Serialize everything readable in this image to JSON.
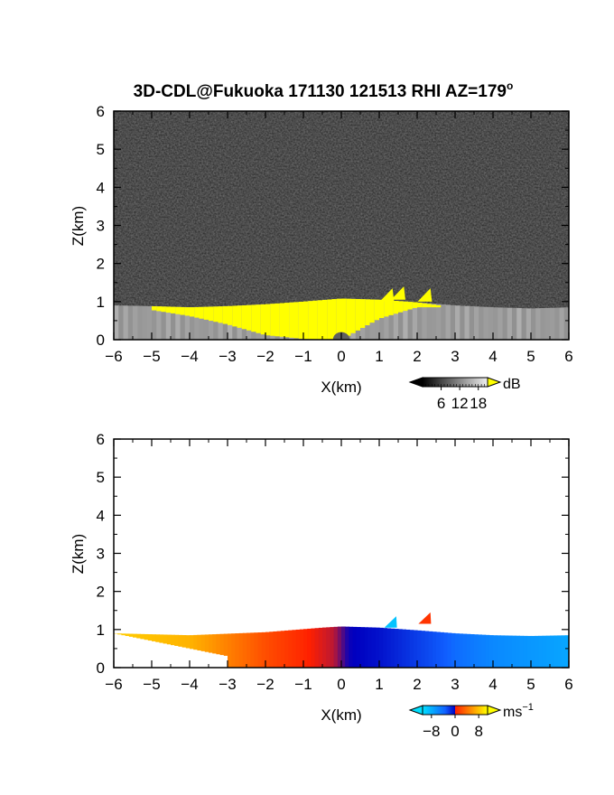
{
  "chart_data": [
    {
      "type": "heatmap",
      "panel": "backscatter",
      "title": "3D-CDL@Fukuoka 171130 121513 RHI AZ=179",
      "title_superscript": "o",
      "xlabel": "X(km)",
      "ylabel": "Z(km)",
      "xlim": [
        -6,
        6
      ],
      "ylim": [
        0,
        6
      ],
      "xticks": [
        "-6",
        "-5",
        "-4",
        "-3",
        "-2",
        "-1",
        "0",
        "1",
        "2",
        "3",
        "4",
        "5",
        "6"
      ],
      "yticks": [
        "0",
        "1",
        "2",
        "3",
        "4",
        "5",
        "6"
      ],
      "colorbar": {
        "unit": "dB",
        "ticks": [
          "6",
          "12",
          "18"
        ],
        "tick_values": [
          6,
          12,
          18
        ],
        "range": [
          0,
          21
        ],
        "colors": {
          "low": "#000000",
          "high": "#f0f0f0",
          "over": "#ffff00"
        }
      },
      "background_noise_color": "#303030",
      "aerosol_top_km": [
        {
          "x": -6.0,
          "z": 0.9
        },
        {
          "x": -5.0,
          "z": 0.88
        },
        {
          "x": -4.0,
          "z": 0.85
        },
        {
          "x": -3.0,
          "z": 0.88
        },
        {
          "x": -2.0,
          "z": 0.93
        },
        {
          "x": -1.0,
          "z": 1.0
        },
        {
          "x": 0.0,
          "z": 1.08
        },
        {
          "x": 1.0,
          "z": 1.05
        },
        {
          "x": 2.0,
          "z": 0.98
        },
        {
          "x": 3.0,
          "z": 0.9
        },
        {
          "x": 4.0,
          "z": 0.85
        },
        {
          "x": 5.0,
          "z": 0.82
        },
        {
          "x": 6.0,
          "z": 0.85
        }
      ],
      "saturated_region_km": [
        {
          "x": -5.0,
          "top": 0.88,
          "bottom": 0.78
        },
        {
          "x": -4.0,
          "top": 0.85,
          "bottom": 0.62
        },
        {
          "x": -3.0,
          "top": 0.88,
          "bottom": 0.4
        },
        {
          "x": -2.0,
          "top": 0.93,
          "bottom": 0.12
        },
        {
          "x": -1.0,
          "top": 1.0,
          "bottom": 0.02
        },
        {
          "x": 0.0,
          "top": 1.08,
          "bottom": 0.0
        },
        {
          "x": 1.0,
          "top": 1.05,
          "bottom": 0.55
        },
        {
          "x": 2.0,
          "top": 0.98,
          "bottom": 0.85
        },
        {
          "x": 2.6,
          "top": 0.9,
          "bottom": 0.85
        }
      ],
      "plumes_km": [
        {
          "x": 1.2,
          "z": 1.35
        },
        {
          "x": 1.5,
          "z": 1.4
        },
        {
          "x": 2.2,
          "z": 1.35
        }
      ]
    },
    {
      "type": "heatmap",
      "panel": "velocity",
      "xlabel": "X(km)",
      "ylabel": "Z(km)",
      "xlim": [
        -6,
        6
      ],
      "ylim": [
        0,
        6
      ],
      "xticks": [
        "-6",
        "-5",
        "-4",
        "-3",
        "-2",
        "-1",
        "0",
        "1",
        "2",
        "3",
        "4",
        "5",
        "6"
      ],
      "yticks": [
        "0",
        "1",
        "2",
        "3",
        "4",
        "5",
        "6"
      ],
      "colorbar": {
        "unit": "ms",
        "unit_exponent": "−1",
        "ticks": [
          "−8",
          "0",
          "8"
        ],
        "tick_values": [
          -8,
          0,
          8
        ],
        "range": [
          -11,
          11
        ],
        "colors": [
          "#00e0ff",
          "#1060ff",
          "#0000c0",
          "#ff2000",
          "#ff9000",
          "#ffff00"
        ]
      },
      "velocity_profile_ms": [
        {
          "x": -6.0,
          "v": 9
        },
        {
          "x": -4.0,
          "v": 8
        },
        {
          "x": -3.0,
          "v": 6
        },
        {
          "x": -2.0,
          "v": 4
        },
        {
          "x": -1.0,
          "v": 2.5
        },
        {
          "x": -0.2,
          "v": 1
        },
        {
          "x": 0.2,
          "v": -2
        },
        {
          "x": 1.0,
          "v": -3
        },
        {
          "x": 2.0,
          "v": -5
        },
        {
          "x": 3.0,
          "v": -7
        },
        {
          "x": 4.0,
          "v": -8
        },
        {
          "x": 6.0,
          "v": -9
        }
      ],
      "layer_top_km": [
        {
          "x": -6.0,
          "z": 0.9
        },
        {
          "x": -4.0,
          "z": 0.85
        },
        {
          "x": -2.0,
          "z": 0.93
        },
        {
          "x": -0.5,
          "z": 1.05
        },
        {
          "x": 0.0,
          "z": 1.08
        },
        {
          "x": 1.0,
          "z": 1.05
        },
        {
          "x": 2.0,
          "z": 0.98
        },
        {
          "x": 3.0,
          "z": 0.9
        },
        {
          "x": 4.0,
          "z": 0.85
        },
        {
          "x": 5.0,
          "z": 0.83
        },
        {
          "x": 6.0,
          "z": 0.85
        }
      ],
      "plumes_km": [
        {
          "x": 1.3,
          "z": 1.35,
          "v": -10
        },
        {
          "x": 2.2,
          "z": 1.45,
          "v": 3
        }
      ]
    }
  ]
}
